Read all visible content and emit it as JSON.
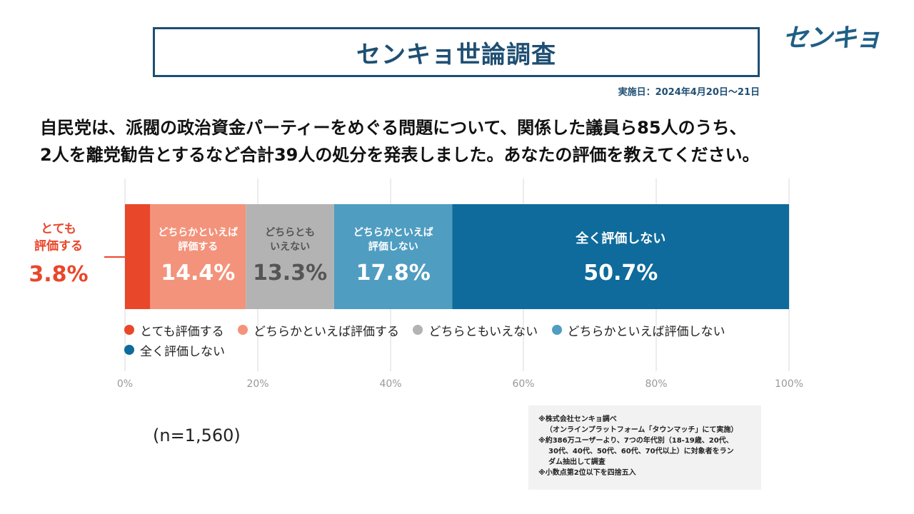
{
  "header": {
    "title": "センキョ世論調査",
    "logo_text": "センキョ",
    "date": "実施日：2024年4月20日〜21日"
  },
  "question": {
    "line1": "自民党は、派閥の政治資金パーティーをめぐる問題について、関係した議員ら85人のうち、",
    "line2": "2人を離党勧告とするなど合計39人の処分を発表しました。あなたの評価を教えてください。"
  },
  "chart_data": {
    "type": "bar",
    "orientation": "horizontal-stacked-100",
    "title": "",
    "xlabel": "",
    "ylabel": "",
    "xlim": [
      0,
      100
    ],
    "ticks": [
      "0%",
      "20%",
      "40%",
      "60%",
      "80%",
      "100%"
    ],
    "tick_values": [
      0,
      20,
      40,
      60,
      80,
      100
    ],
    "grid": true,
    "legend_position": "bottom",
    "series": [
      {
        "name": "とても評価する",
        "value": 3.8,
        "label": "3.8%",
        "inner_label": [
          "とても",
          "評価する"
        ],
        "color": "#e9472a",
        "text_color": "#e9472a"
      },
      {
        "name": "どちらかといえば評価する",
        "value": 14.4,
        "label": "14.4%",
        "inner_label": [
          "どちらかといえば",
          "評価する"
        ],
        "color": "#f3937b",
        "text_color": "#ffffff"
      },
      {
        "name": "どちらともいえない",
        "value": 13.3,
        "label": "13.3%",
        "inner_label": [
          "どちらとも",
          "いえない"
        ],
        "color": "#b3b3b3",
        "text_color": "#555555"
      },
      {
        "name": "どちらかといえば評価しない",
        "value": 17.8,
        "label": "17.8%",
        "inner_label": [
          "どちらかといえば",
          "評価しない"
        ],
        "color": "#4f9dc1",
        "text_color": "#ffffff"
      },
      {
        "name": "全く評価しない",
        "value": 50.7,
        "label": "50.7%",
        "inner_label": [
          "全く評価しない"
        ],
        "color": "#0e6b9b",
        "text_color": "#ffffff"
      }
    ]
  },
  "legend": {
    "items": [
      {
        "label": "とても評価する",
        "color": "#e9472a"
      },
      {
        "label": "どちらかといえば評価する",
        "color": "#f3937b"
      },
      {
        "label": "どちらともいえない",
        "color": "#b3b3b3"
      },
      {
        "label": "どちらかといえば評価しない",
        "color": "#4f9dc1"
      },
      {
        "label": "全く評価しない",
        "color": "#0e6b9b"
      }
    ]
  },
  "sample_size": "(n=1,560)",
  "notes": [
    "※株式会社センキョ調べ",
    "（オンラインプラットフォーム「タウンマッチ」にて実施）",
    "※約386万ユーザーより、7つの年代別（18-19歳、20代、",
    "30代、40代、50代、60代、70代以上）に対象者をラン",
    "ダム抽出して調査",
    "※小数点第2位以下を四捨五入"
  ]
}
